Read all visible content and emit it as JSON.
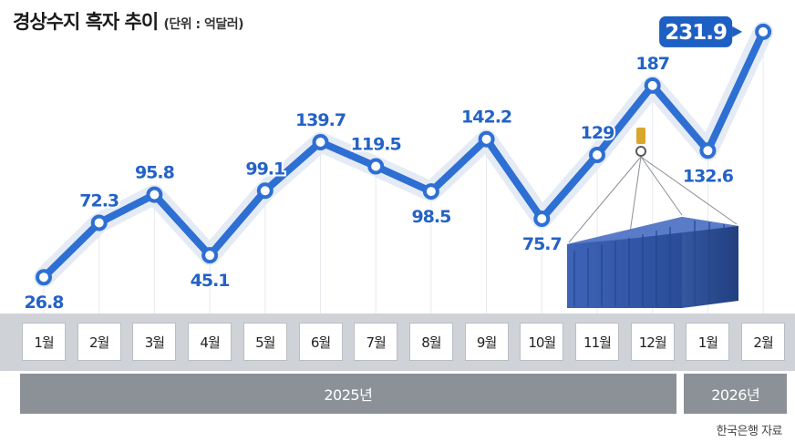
{
  "title": "경상수지 흑자 추이",
  "unit_note": "(단위 : 억달러)",
  "source": "한국은행 자료",
  "colors": {
    "line": "#2e6fd3",
    "label": "#2462c6",
    "highlight": "#1d5fc2",
    "band": "#cfd3d8",
    "year_box": "#8c9197"
  },
  "chart_data": {
    "type": "line",
    "title": "경상수지 흑자 추이",
    "unit": "억달러",
    "categories": [
      "1월",
      "2월",
      "3월",
      "4월",
      "5월",
      "6월",
      "7월",
      "8월",
      "9월",
      "10월",
      "11월",
      "12월",
      "1월",
      "2월"
    ],
    "values": [
      26.8,
      72.3,
      95.8,
      45.1,
      99.1,
      139.7,
      119.5,
      98.5,
      142.2,
      75.7,
      129,
      187,
      132.6,
      231.9
    ],
    "value_labels": [
      "26.8",
      "72.3",
      "95.8",
      "45.1",
      "99.1",
      "139.7",
      "119.5",
      "98.5",
      "142.2",
      "75.7",
      "129",
      "187",
      "132.6",
      "231.9"
    ],
    "years": [
      {
        "label": "2025년",
        "from": 0,
        "to": 11
      },
      {
        "label": "2026년",
        "from": 12,
        "to": 13
      }
    ],
    "highlight_index": 13,
    "grid": false,
    "legend": "none"
  }
}
